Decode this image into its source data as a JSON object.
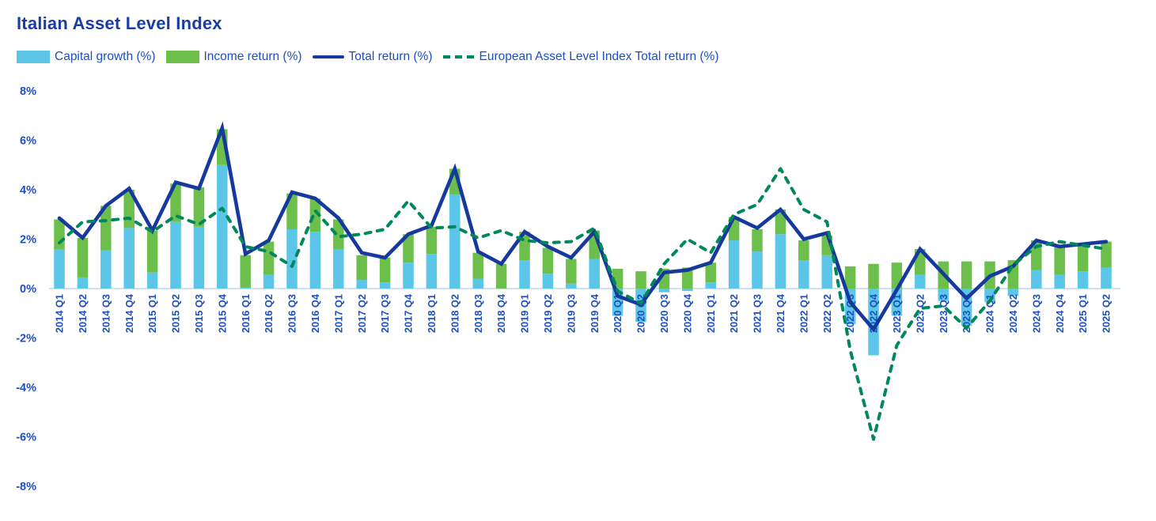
{
  "title": "Italian Asset Level Index",
  "legend": [
    {
      "label": "Capital growth (%)",
      "type": "bar",
      "color": "#5BC6E8"
    },
    {
      "label": "Income return (%)",
      "type": "bar",
      "color": "#6CBF4B"
    },
    {
      "label": "Total return (%)",
      "type": "line",
      "color": "#16399E"
    },
    {
      "label": "European Asset Level Index Total return (%)",
      "type": "dashed-line",
      "color": "#00875B"
    }
  ],
  "y_axis": {
    "tick_labels": [
      "8%",
      "6%",
      "4%",
      "2%",
      "0%",
      "-2%",
      "-4%",
      "-6%",
      "-8%"
    ],
    "tick_values": [
      8,
      6,
      4,
      2,
      0,
      -2,
      -4,
      -6,
      -8
    ]
  },
  "chart_data": {
    "type": "bar",
    "subtype": "stacked-bars-with-overlaid-lines",
    "title": "Italian Asset Level Index",
    "xlabel": "",
    "ylabel": "",
    "ylim": [
      -8,
      8
    ],
    "grid": false,
    "legend_position": "top",
    "baseline_color": "#BFD9F2",
    "categories": [
      "2014 Q1",
      "2014 Q2",
      "2014 Q3",
      "2014 Q4",
      "2015 Q1",
      "2015 Q2",
      "2015 Q3",
      "2015 Q4",
      "2016 Q1",
      "2016 Q2",
      "2016 Q3",
      "2016 Q4",
      "2017 Q1",
      "2017 Q2",
      "2017 Q3",
      "2017 Q4",
      "2018 Q1",
      "2018 Q2",
      "2018 Q3",
      "2018 Q4",
      "2019 Q1",
      "2019 Q2",
      "2019 Q3",
      "2019 Q4",
      "2020 Q1",
      "2020 Q2",
      "2020 Q3",
      "2020 Q4",
      "2021 Q1",
      "2021 Q2",
      "2021 Q3",
      "2021 Q4",
      "2022 Q1",
      "2022 Q2",
      "2022 Q3",
      "2022 Q4",
      "2023 Q1",
      "2023 Q2",
      "2023 Q3",
      "2023 Q4",
      "2024 Q1",
      "2024 Q2",
      "2024 Q3",
      "2024 Q4",
      "2025 Q1",
      "2025 Q2"
    ],
    "series": [
      {
        "name": "Capital growth (%)",
        "type": "bar",
        "color": "#5BC6E8",
        "values": [
          1.6,
          0.45,
          1.55,
          2.45,
          0.65,
          2.7,
          2.5,
          5.0,
          0.05,
          0.55,
          2.4,
          2.3,
          1.6,
          0.35,
          0.25,
          1.05,
          1.4,
          3.8,
          0.4,
          0.0,
          1.15,
          0.6,
          0.2,
          1.2,
          -1.1,
          -1.35,
          -0.15,
          -0.1,
          0.25,
          1.95,
          1.5,
          2.2,
          1.15,
          1.35,
          -1.45,
          -2.7,
          -1.1,
          0.55,
          -0.5,
          -1.5,
          -0.55,
          -0.3,
          0.75,
          0.55,
          0.7,
          0.85
        ]
      },
      {
        "name": "Income return (%)",
        "type": "bar",
        "color": "#6CBF4B",
        "values": [
          1.2,
          1.6,
          1.8,
          1.55,
          1.7,
          1.55,
          1.6,
          1.45,
          1.3,
          1.35,
          1.45,
          1.35,
          1.2,
          1.0,
          1.0,
          1.15,
          1.1,
          1.05,
          1.05,
          1.0,
          1.15,
          1.05,
          1.0,
          1.15,
          0.8,
          0.7,
          0.8,
          0.85,
          0.8,
          0.95,
          0.9,
          1.0,
          0.8,
          0.8,
          0.9,
          1.0,
          1.05,
          1.05,
          1.1,
          1.1,
          1.1,
          1.15,
          1.2,
          1.15,
          1.1,
          1.05
        ]
      },
      {
        "name": "Total return (%)",
        "type": "line",
        "color": "#16399E",
        "values": [
          2.85,
          2.05,
          3.35,
          4.05,
          2.35,
          4.3,
          4.05,
          6.5,
          1.4,
          1.95,
          3.9,
          3.65,
          2.85,
          1.45,
          1.25,
          2.2,
          2.55,
          4.85,
          1.5,
          1.0,
          2.3,
          1.7,
          1.25,
          2.3,
          -0.3,
          -0.65,
          0.65,
          0.75,
          1.05,
          2.9,
          2.45,
          3.2,
          2.0,
          2.25,
          -0.55,
          -1.65,
          -0.05,
          1.6,
          0.6,
          -0.4,
          0.5,
          0.9,
          1.95,
          1.7,
          1.8,
          1.9
        ]
      },
      {
        "name": "European Asset Level Index Total return (%)",
        "type": "dashed-line",
        "color": "#00875B",
        "values": [
          1.85,
          2.7,
          2.75,
          2.85,
          2.3,
          2.95,
          2.6,
          3.25,
          1.7,
          1.5,
          0.9,
          3.15,
          2.1,
          2.2,
          2.4,
          3.55,
          2.45,
          2.5,
          2.05,
          2.35,
          1.95,
          1.85,
          1.9,
          2.45,
          -0.1,
          -0.6,
          1.0,
          2.0,
          1.45,
          3.0,
          3.4,
          4.85,
          3.2,
          2.7,
          -2.5,
          -6.1,
          -2.3,
          -0.8,
          -0.7,
          -1.6,
          -0.5,
          0.95,
          1.7,
          1.9,
          1.75,
          1.6
        ]
      }
    ]
  }
}
